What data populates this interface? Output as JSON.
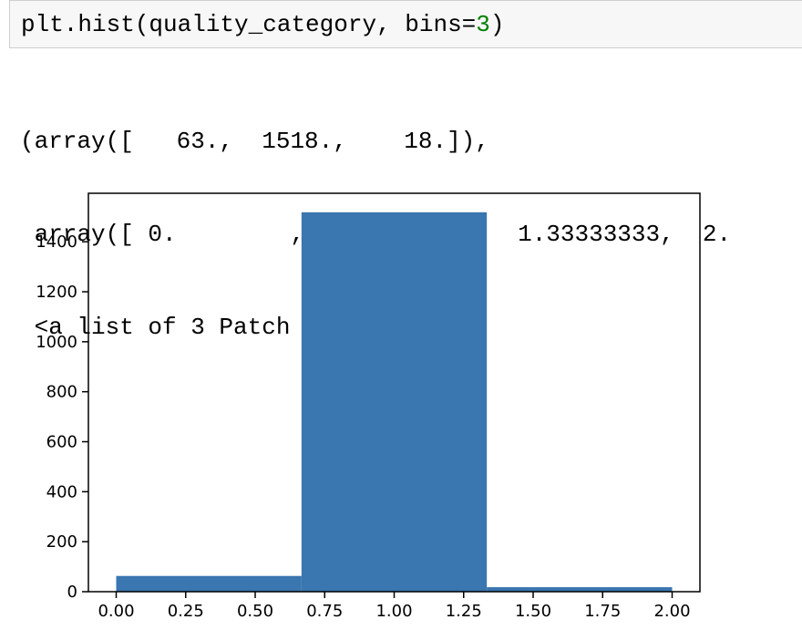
{
  "cell": {
    "code_prefix": "plt.hist(quality_category, bins=",
    "code_number": "3",
    "code_suffix": ")"
  },
  "output": {
    "lines": [
      "(array([   63.,  1518.,    18.]),",
      " array([ 0.        ,  0.66666667,  1.33333333,  2.",
      " <a list of 3 Patch objects>)"
    ]
  },
  "chart_data": {
    "type": "bar",
    "bin_edges": [
      0.0,
      0.66666667,
      1.33333333,
      2.0
    ],
    "values": [
      63,
      1518,
      18
    ],
    "xlim": [
      -0.1,
      2.1
    ],
    "ylim": [
      0,
      1594
    ],
    "x_ticks": [
      "0.00",
      "0.25",
      "0.50",
      "0.75",
      "1.00",
      "1.25",
      "1.50",
      "1.75",
      "2.00"
    ],
    "y_ticks": [
      "0",
      "200",
      "400",
      "600",
      "800",
      "1000",
      "1200",
      "1400"
    ],
    "bar_color": "#3a76af",
    "title": "",
    "xlabel": "",
    "ylabel": "",
    "grid": false
  }
}
